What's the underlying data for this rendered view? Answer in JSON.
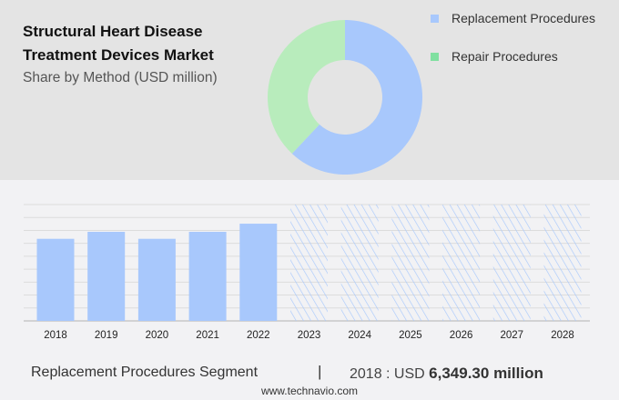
{
  "title_line1": "Structural Heart Disease",
  "title_line2": "Treatment Devices Market",
  "subtitle": "Share by Method (USD million)",
  "chart_data": [
    {
      "type": "pie",
      "donut": true,
      "categories": [
        "Replacement Procedures",
        "Repair Procedures"
      ],
      "values": [
        62,
        38
      ],
      "colors": [
        "#a8c8fc",
        "#b8ecbc"
      ],
      "legend_colors": [
        "#a8c8fc",
        "#80e0a0"
      ],
      "legend": "top-right"
    },
    {
      "type": "bar",
      "categories": [
        "2018",
        "2019",
        "2020",
        "2021",
        "2022",
        "2023",
        "2024",
        "2025",
        "2026",
        "2027",
        "2028"
      ],
      "values": [
        6349.3,
        6890,
        6349.3,
        6890,
        7520,
        null,
        null,
        null,
        null,
        null,
        null
      ],
      "forecast_from": "2023",
      "ylim": [
        0,
        9000
      ],
      "grid": true,
      "color": "#a8c8fc"
    }
  ],
  "footer": {
    "segment": "Replacement Procedures Segment",
    "separator": "|",
    "year_label": "2018 : USD",
    "value": "6,349.30 million"
  },
  "site": "www.technavio.com"
}
